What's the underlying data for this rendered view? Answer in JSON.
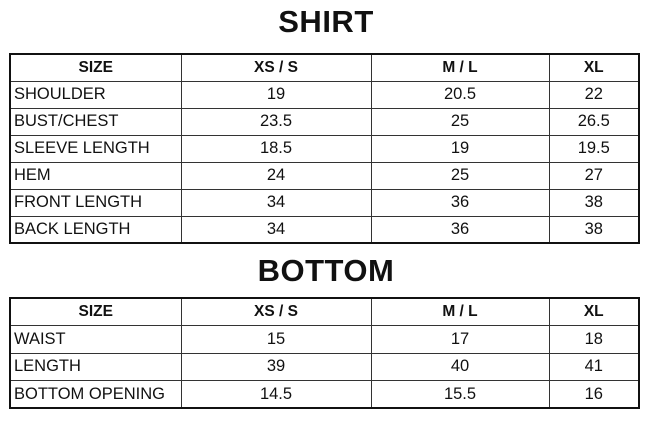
{
  "shirt": {
    "title": "SHIRT",
    "headers": [
      "SIZE",
      "XS / S",
      "M / L",
      "XL"
    ],
    "rows": [
      [
        "SHOULDER",
        "19",
        "20.5",
        "22"
      ],
      [
        "BUST/CHEST",
        "23.5",
        "25",
        "26.5"
      ],
      [
        "SLEEVE LENGTH",
        "18.5",
        "19",
        "19.5"
      ],
      [
        "HEM",
        "24",
        "25",
        "27"
      ],
      [
        "FRONT LENGTH",
        "34",
        "36",
        "38"
      ],
      [
        "BACK LENGTH",
        "34",
        "36",
        "38"
      ]
    ]
  },
  "bottom": {
    "title": "BOTTOM",
    "headers": [
      "SIZE",
      "XS / S",
      "M / L",
      "XL"
    ],
    "rows": [
      [
        "WAIST",
        "15",
        "17",
        "18"
      ],
      [
        "LENGTH",
        "39",
        "40",
        "41"
      ],
      [
        "BOTTOM OPENING",
        "14.5",
        "15.5",
        "16"
      ]
    ]
  }
}
